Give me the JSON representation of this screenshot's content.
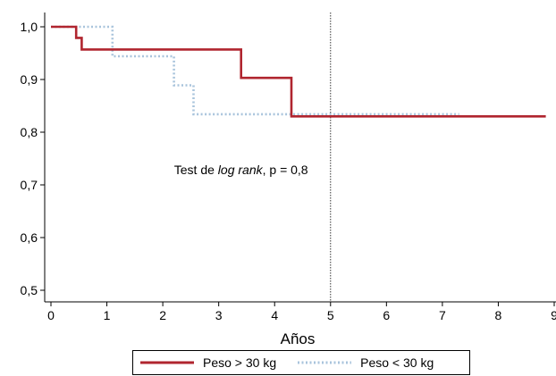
{
  "chart_data": {
    "type": "line",
    "xlabel": "Años",
    "ylabel": "",
    "xlim": [
      0,
      9
    ],
    "ylim": [
      0.5,
      1.0
    ],
    "xticks": [
      0,
      1,
      2,
      3,
      4,
      5,
      6,
      7,
      8,
      9
    ],
    "xtick_labels": [
      "0",
      "1",
      "2",
      "3",
      "4",
      "5",
      "6",
      "7",
      "8",
      "9"
    ],
    "yticks": [
      0.5,
      0.6,
      0.7,
      0.8,
      0.9,
      1.0
    ],
    "ytick_labels": [
      "0,5",
      "0,6",
      "0,7",
      "0,8",
      "0,9",
      "1,0"
    ],
    "grid": false,
    "reference_line_x": 5,
    "annotation": {
      "prefix": "Test de ",
      "emphasis": "log rank",
      "suffix": ", p = 0,8",
      "x": 3.4,
      "y": 0.72
    },
    "series": [
      {
        "name": "Peso > 30 kg",
        "color": "#b0252f",
        "style": "solid",
        "points": [
          [
            0,
            1.0
          ],
          [
            0.45,
            1.0
          ],
          [
            0.45,
            0.979
          ],
          [
            0.55,
            0.979
          ],
          [
            0.55,
            0.957
          ],
          [
            3.4,
            0.957
          ],
          [
            3.4,
            0.903
          ],
          [
            4.3,
            0.903
          ],
          [
            4.3,
            0.83
          ],
          [
            8.85,
            0.83
          ]
        ]
      },
      {
        "name": "Peso < 30 kg",
        "color": "#a9c4dc",
        "style": "dotted",
        "points": [
          [
            0,
            1.0
          ],
          [
            1.1,
            1.0
          ],
          [
            1.1,
            0.944
          ],
          [
            2.2,
            0.944
          ],
          [
            2.2,
            0.889
          ],
          [
            2.55,
            0.889
          ],
          [
            2.55,
            0.834
          ],
          [
            7.3,
            0.834
          ]
        ]
      }
    ],
    "legend_position": "bottom"
  }
}
